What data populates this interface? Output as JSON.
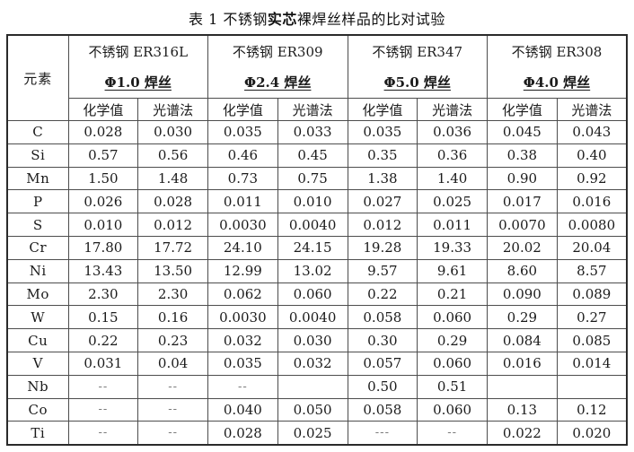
{
  "page": {
    "title_prefix": "表 1 不锈钢",
    "title_bold": "实芯",
    "title_suffix": "裸焊丝样品的比对试验"
  },
  "table": {
    "element_header": "元素",
    "groups": [
      {
        "steel": "不锈钢 ER316L",
        "spec": "Φ1.0 焊丝"
      },
      {
        "steel": "不锈钢 ER309",
        "spec": "Φ2.4 焊丝"
      },
      {
        "steel": "不锈钢 ER347",
        "spec": "Φ5.0 焊丝"
      },
      {
        "steel": "不锈钢 ER308",
        "spec": "Φ4.0 焊丝"
      }
    ],
    "sub_labels": [
      "化学值",
      "光谱法"
    ],
    "rows": [
      {
        "element": "C",
        "values": [
          "0.028",
          "0.030",
          "0.035",
          "0.033",
          "0.035",
          "0.036",
          "0.045",
          "0.043"
        ]
      },
      {
        "element": "Si",
        "values": [
          "0.57",
          "0.56",
          "0.46",
          "0.45",
          "0.35",
          "0.36",
          "0.38",
          "0.40"
        ]
      },
      {
        "element": "Mn",
        "values": [
          "1.50",
          "1.48",
          "0.73",
          "0.75",
          "1.38",
          "1.40",
          "0.90",
          "0.92"
        ]
      },
      {
        "element": "P",
        "values": [
          "0.026",
          "0.028",
          "0.011",
          "0.010",
          "0.027",
          "0.025",
          "0.017",
          "0.016"
        ]
      },
      {
        "element": "S",
        "values": [
          "0.010",
          "0.012",
          "0.0030",
          "0.0040",
          "0.012",
          "0.011",
          "0.0070",
          "0.0080"
        ]
      },
      {
        "element": "Cr",
        "values": [
          "17.80",
          "17.72",
          "24.10",
          "24.15",
          "19.28",
          "19.33",
          "20.02",
          "20.04"
        ]
      },
      {
        "element": "Ni",
        "values": [
          "13.43",
          "13.50",
          "12.99",
          "13.02",
          "9.57",
          "9.61",
          "8.60",
          "8.57"
        ]
      },
      {
        "element": "Mo",
        "values": [
          "2.30",
          "2.30",
          "0.062",
          "0.060",
          "0.22",
          "0.21",
          "0.090",
          "0.089"
        ]
      },
      {
        "element": "W",
        "values": [
          "0.15",
          "0.16",
          "0.0030",
          "0.0040",
          "0.058",
          "0.060",
          "0.29",
          "0.27"
        ]
      },
      {
        "element": "Cu",
        "values": [
          "0.22",
          "0.23",
          "0.032",
          "0.030",
          "0.30",
          "0.29",
          "0.084",
          "0.085"
        ]
      },
      {
        "element": "V",
        "values": [
          "0.031",
          "0.04",
          "0.035",
          "0.032",
          "0.057",
          "0.060",
          "0.016",
          "0.014"
        ]
      },
      {
        "element": "Nb",
        "values": [
          "--",
          "--",
          "--",
          "",
          "0.50",
          "0.51",
          "",
          ""
        ]
      },
      {
        "element": "Co",
        "values": [
          "--",
          "--",
          "0.040",
          "0.050",
          "0.058",
          "0.060",
          "0.13",
          "0.12"
        ]
      },
      {
        "element": "Ti",
        "values": [
          "--",
          "--",
          "0.028",
          "0.025",
          "---",
          "--",
          "0.022",
          "0.020"
        ]
      }
    ]
  }
}
